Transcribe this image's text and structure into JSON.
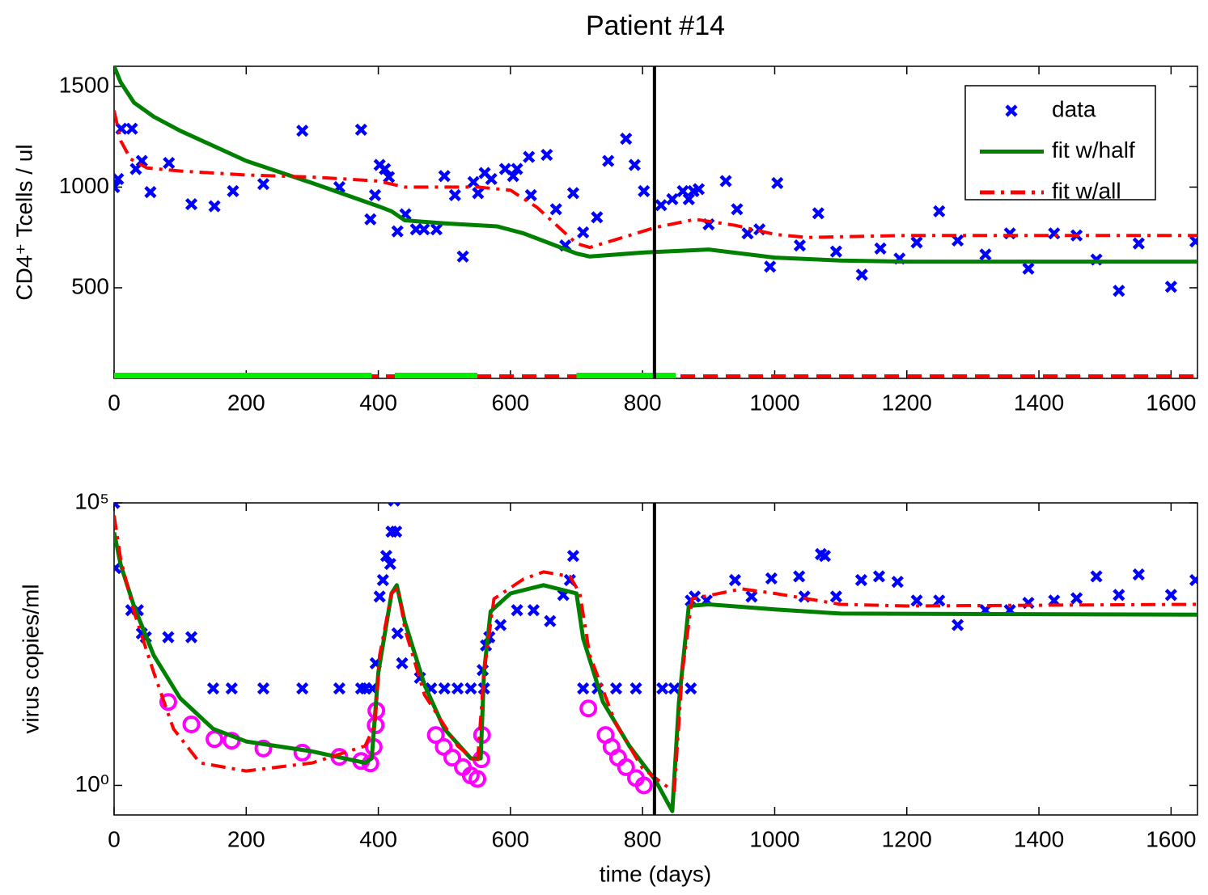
{
  "chart_data": [
    {
      "type": "line",
      "title": "Patient #14",
      "ylabel": "CD4⁺ Tcells / ul",
      "xlim": [
        0,
        1640
      ],
      "xticks": [
        0,
        200,
        400,
        600,
        800,
        1000,
        1200,
        1400,
        1600
      ],
      "ylim": [
        50,
        1600
      ],
      "yticks": [
        500,
        1000,
        1500
      ],
      "yscale": "linear",
      "grid": false,
      "legend": "upper right",
      "vline": 818,
      "treatment_on": [
        [
          0,
          390
        ],
        [
          425,
          550
        ],
        [
          700,
          850
        ]
      ],
      "treatment_color": "#00ee00",
      "series": [
        {
          "name": "data",
          "color": "#0000ff",
          "mode": "markers",
          "marker": "x",
          "x": [
            0,
            6,
            11,
            27,
            33,
            42,
            55,
            83,
            117,
            152,
            180,
            226,
            285,
            341,
            374,
            388,
            395,
            402,
            410,
            416,
            429,
            441,
            457,
            469,
            488,
            500,
            516,
            528,
            544,
            551,
            561,
            571,
            592,
            604,
            610,
            628,
            631,
            655,
            669,
            683,
            695,
            710,
            731,
            748,
            775,
            788,
            802,
            828,
            845,
            861,
            870,
            877,
            885,
            900,
            926,
            943,
            959,
            977,
            993,
            1004,
            1038,
            1066,
            1093,
            1132,
            1160,
            1189,
            1215,
            1249,
            1277,
            1319,
            1356,
            1384,
            1423,
            1457,
            1487,
            1521,
            1551,
            1600,
            1637
          ],
          "values": [
            1000,
            1040,
            1290,
            1290,
            1090,
            1130,
            975,
            1120,
            915,
            905,
            980,
            1015,
            1280,
            1000,
            1285,
            840,
            960,
            1110,
            1090,
            1050,
            780,
            865,
            790,
            790,
            790,
            1055,
            960,
            655,
            1025,
            970,
            1070,
            1040,
            1090,
            1055,
            1090,
            1150,
            960,
            1160,
            890,
            710,
            970,
            775,
            850,
            1130,
            1240,
            1110,
            980,
            910,
            940,
            980,
            940,
            980,
            990,
            815,
            1030,
            890,
            770,
            790,
            605,
            1020,
            710,
            870,
            680,
            565,
            695,
            645,
            725,
            880,
            735,
            665,
            770,
            595,
            770,
            760,
            640,
            485,
            720,
            505,
            730
          ]
        },
        {
          "name": "fit w/half",
          "color": "#008000",
          "mode": "line",
          "dash": "solid",
          "x": [
            0,
            10,
            30,
            60,
            100,
            200,
            300,
            400,
            420,
            440,
            500,
            580,
            620,
            660,
            700,
            720,
            800,
            900,
            1000,
            1100,
            1200,
            1640
          ],
          "values": [
            1600,
            1520,
            1420,
            1350,
            1280,
            1130,
            1020,
            905,
            880,
            835,
            820,
            805,
            770,
            720,
            670,
            655,
            675,
            690,
            650,
            635,
            630,
            630
          ]
        },
        {
          "name": "fit w/all",
          "color": "#ff0000",
          "mode": "line",
          "dash": "dashdot",
          "x": [
            0,
            10,
            25,
            50,
            100,
            200,
            300,
            400,
            440,
            550,
            600,
            640,
            700,
            720,
            760,
            820,
            880,
            940,
            1000,
            1050,
            1200,
            1640
          ],
          "values": [
            1380,
            1230,
            1140,
            1095,
            1080,
            1060,
            1050,
            1030,
            1000,
            1000,
            985,
            900,
            720,
            700,
            740,
            800,
            840,
            810,
            765,
            750,
            760,
            760
          ]
        }
      ]
    },
    {
      "type": "line",
      "ylabel": "virus copies/ml",
      "xlabel": "time (days)",
      "xlim": [
        0,
        1640
      ],
      "xticks": [
        0,
        200,
        400,
        600,
        800,
        1000,
        1200,
        1400,
        1600
      ],
      "ylim": [
        0.3,
        100000
      ],
      "yticks": [
        {
          "value": 1,
          "label": "10⁰"
        },
        {
          "value": 100000,
          "label": "10⁵"
        }
      ],
      "yscale": "log",
      "grid": false,
      "vline": 818,
      "series": [
        {
          "color": "#0000ff",
          "mode": "markers",
          "marker": "x",
          "x": [
            0,
            2,
            26,
            36,
            42,
            48,
            82,
            117,
            150,
            178,
            226,
            285,
            341,
            374,
            381,
            391,
            396,
            402,
            407,
            412,
            418,
            424,
            420,
            427,
            429,
            436,
            463,
            480,
            500,
            520,
            540,
            560,
            558,
            563,
            568,
            585,
            610,
            635,
            660,
            680,
            690,
            695,
            710,
            732,
            760,
            790,
            830,
            848,
            873,
            873,
            879,
            897,
            940,
            965,
            995,
            1037,
            1045,
            1070,
            1076,
            1093,
            1131,
            1158,
            1186,
            1215,
            1249,
            1277,
            1319,
            1356,
            1384,
            1423,
            1457,
            1487,
            1521,
            1551,
            1600,
            1637
          ],
          "values": [
            100000,
            7000,
            1260,
            1260,
            490,
            420,
            420,
            420,
            52,
            52,
            52,
            52,
            52,
            52,
            52,
            52,
            145,
            2200,
            4300,
            11500,
            8300,
            110000,
            31000,
            31000,
            490,
            145,
            80,
            52,
            52,
            52,
            52,
            52,
            110,
            300,
            420,
            690,
            1260,
            1260,
            810,
            2350,
            4300,
            11500,
            52,
            52,
            52,
            52,
            52,
            52,
            52,
            1870,
            2200,
            1870,
            4300,
            2200,
            4600,
            5000,
            2200,
            12400,
            11500,
            2200,
            4300,
            5000,
            4000,
            1870,
            1870,
            690,
            1260,
            1260,
            1700,
            1870,
            2050,
            5000,
            2350,
            5400,
            2350,
            4300
          ]
        },
        {
          "color": "#ff00ff",
          "mode": "markers",
          "marker": "o",
          "x": [
            82,
            117,
            152,
            178,
            226,
            285,
            341,
            374,
            388,
            393,
            396,
            397,
            487,
            499,
            512,
            528,
            540,
            550,
            556,
            557,
            718,
            744,
            753,
            763,
            775,
            790,
            802
          ],
          "values": [
            30,
            12,
            6.6,
            6.2,
            4.5,
            3.8,
            3.2,
            2.7,
            2.45,
            4.8,
            11.6,
            21,
            7.8,
            4.8,
            3.1,
            2.1,
            1.5,
            1.3,
            2.9,
            7.8,
            23,
            7.8,
            4.8,
            3.1,
            2.1,
            1.35,
            1.0
          ]
        },
        {
          "color": "#008000",
          "mode": "line",
          "dash": "solid",
          "x": [
            0,
            10,
            30,
            60,
            100,
            150,
            200,
            300,
            380,
            390,
            400,
            420,
            428,
            440,
            470,
            500,
            540,
            555,
            560,
            570,
            600,
            650,
            700,
            710,
            740,
            780,
            820,
            845,
            855,
            870,
            900,
            1000,
            1100,
            1640
          ],
          "values": [
            30000,
            8000,
            1500,
            200,
            35,
            10,
            6,
            4,
            2.5,
            3,
            100,
            2500,
            3500,
            800,
            60,
            10,
            3,
            3,
            100,
            1200,
            2500,
            3500,
            2500,
            400,
            30,
            5,
            1.2,
            0.35,
            30,
            1500,
            1600,
            1300,
            1100,
            1050
          ]
        },
        {
          "color": "#ff0000",
          "mode": "line",
          "dash": "dashdot",
          "x": [
            0,
            10,
            30,
            60,
            90,
            130,
            200,
            300,
            380,
            395,
            402,
            420,
            430,
            440,
            470,
            520,
            550,
            560,
            575,
            620,
            650,
            690,
            705,
            720,
            760,
            800,
            840,
            848,
            860,
            875,
            950,
            1000,
            1100,
            1200,
            1640
          ],
          "values": [
            60000,
            10000,
            1200,
            100,
            10,
            2.5,
            1.8,
            2.5,
            5,
            12,
            200,
            2500,
            3200,
            600,
            40,
            5,
            2.5,
            100,
            2000,
            4500,
            6000,
            5000,
            2500,
            200,
            12,
            2,
            0.9,
            0.8,
            100,
            2000,
            3000,
            2500,
            1600,
            1500,
            1600
          ]
        }
      ]
    }
  ]
}
